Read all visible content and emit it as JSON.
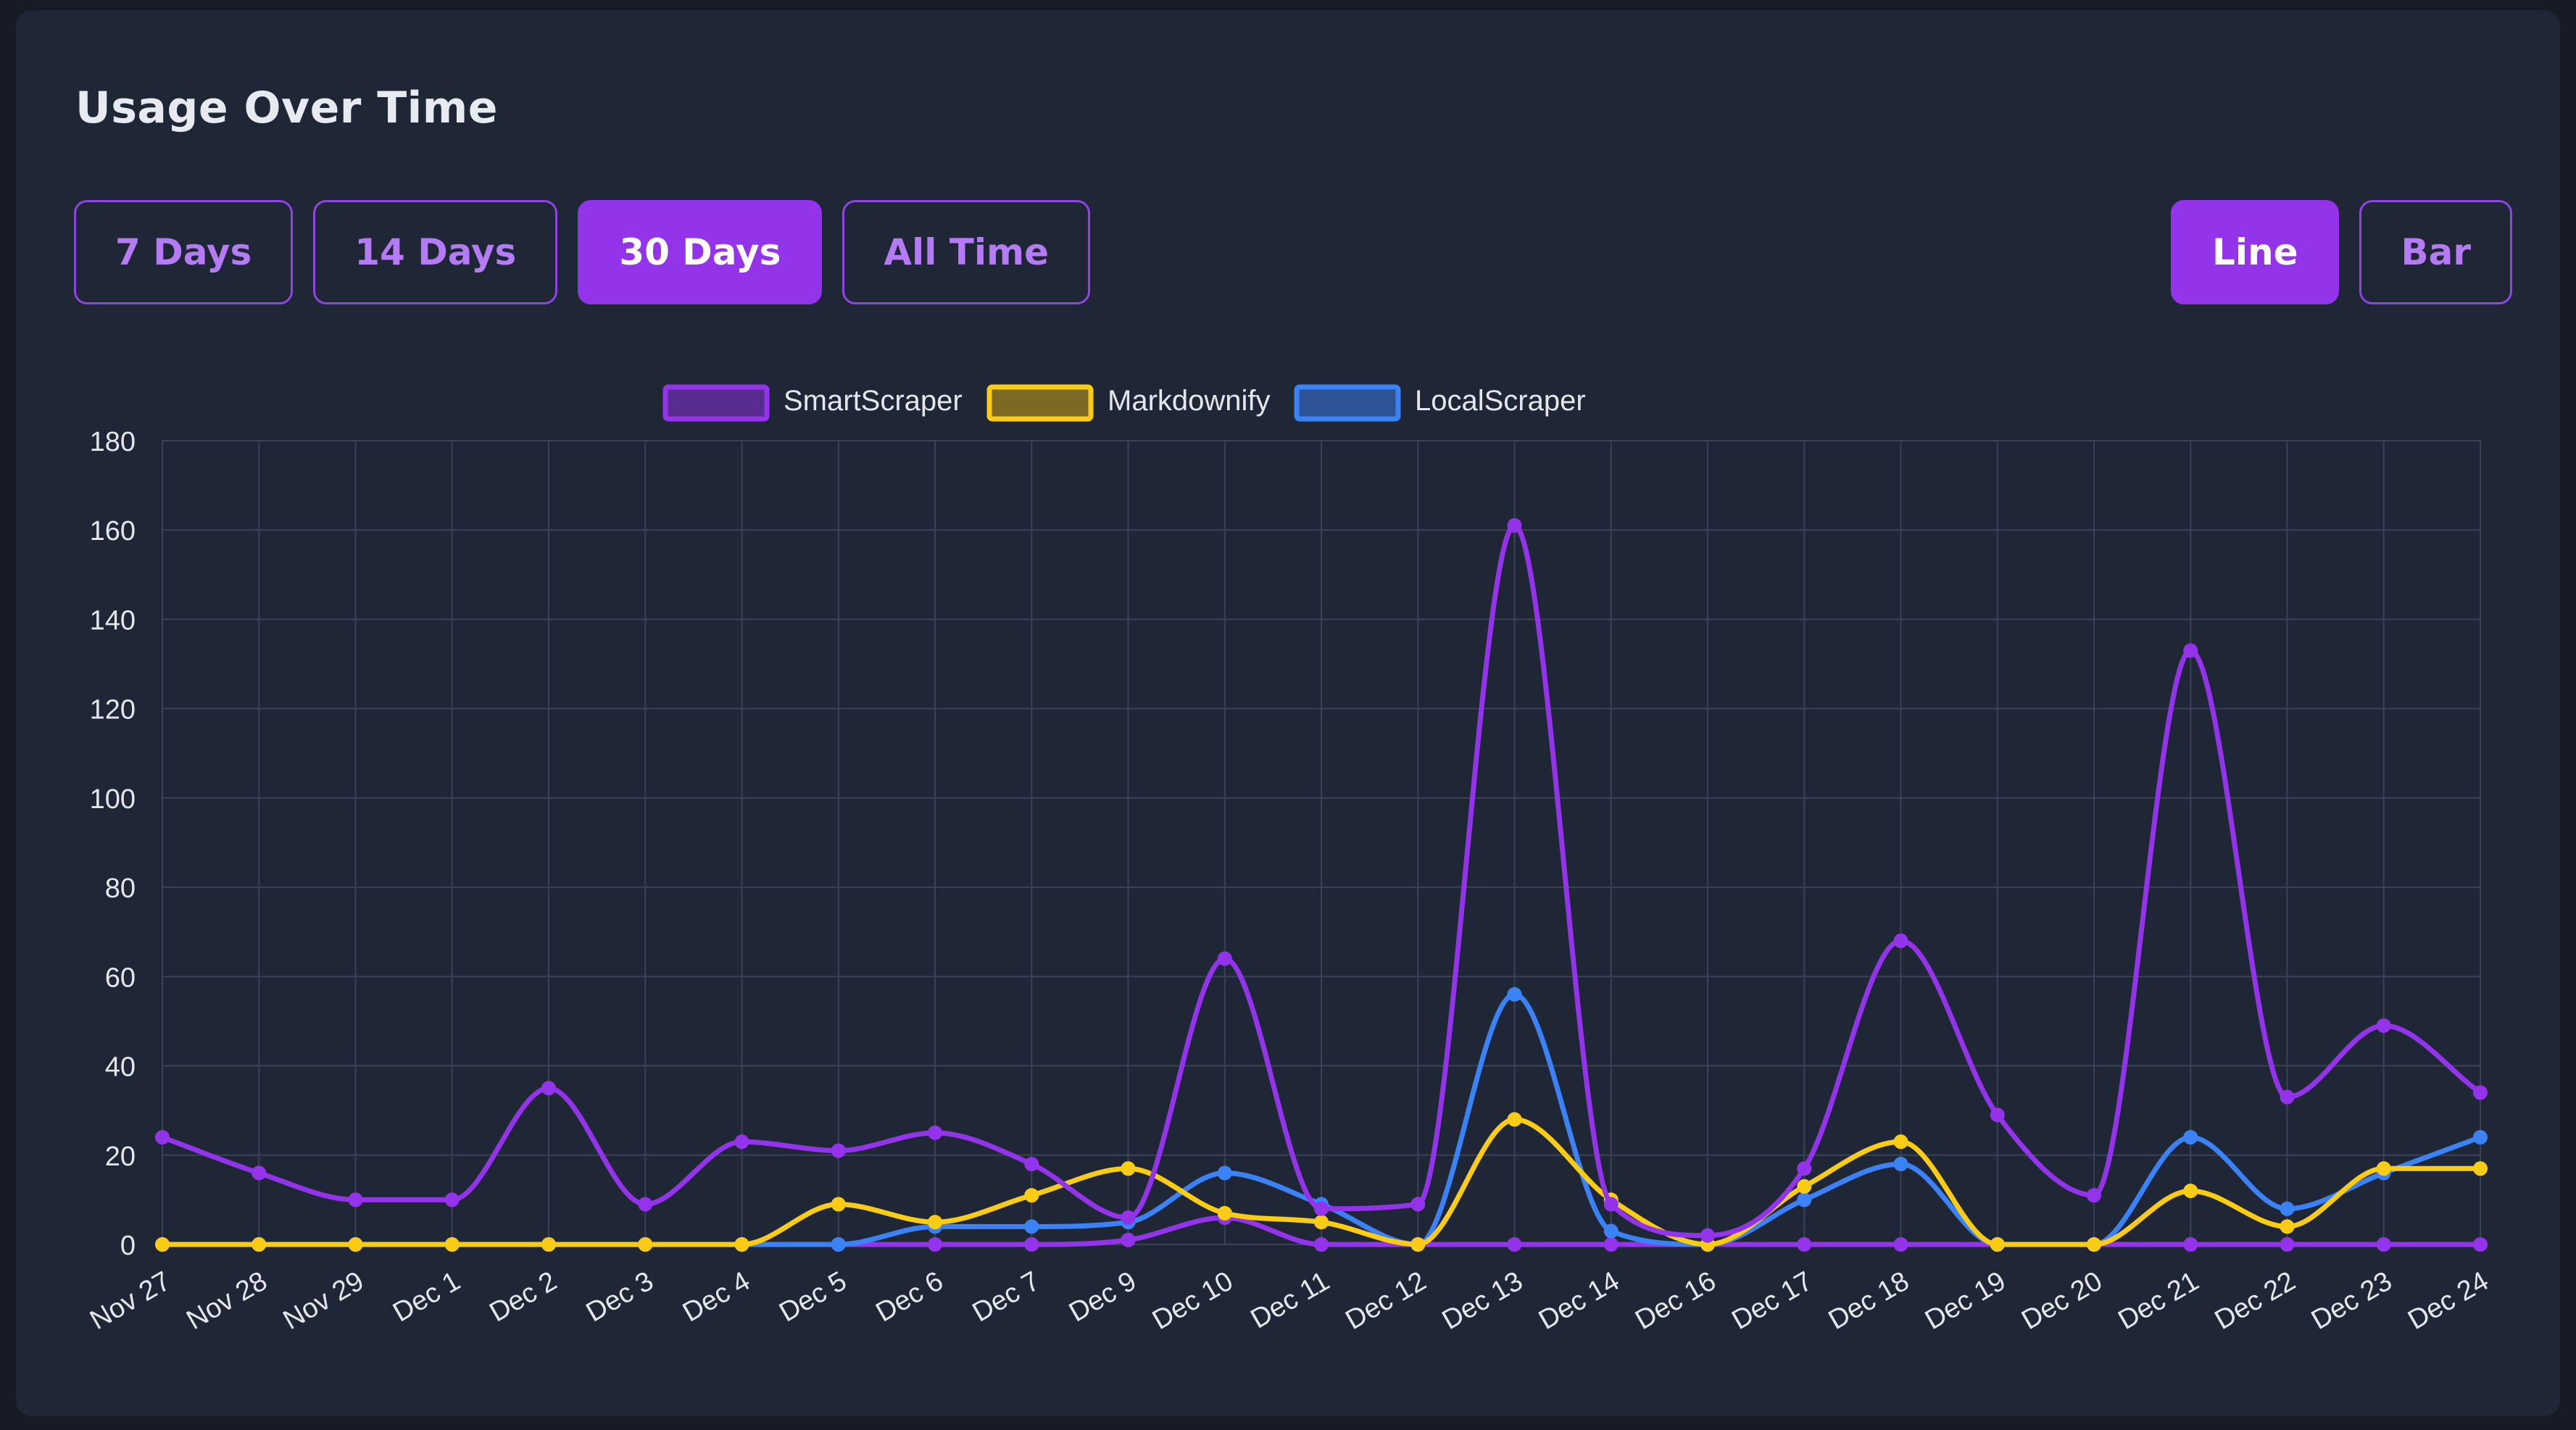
{
  "card": {
    "title": "Usage Over Time"
  },
  "range_buttons": [
    {
      "label": "7 Days",
      "active": false
    },
    {
      "label": "14 Days",
      "active": false
    },
    {
      "label": "30 Days",
      "active": true
    },
    {
      "label": "All Time",
      "active": false
    }
  ],
  "chart_type_buttons": [
    {
      "label": "Line",
      "active": true
    },
    {
      "label": "Bar",
      "active": false
    }
  ],
  "colors": {
    "accent": "#9333ea",
    "card_bg": "#1f2737",
    "grid": "#3a4356",
    "tick_text": "#e5e7eb"
  },
  "chart_data": {
    "type": "line",
    "title": "",
    "xlabel": "",
    "ylabel": "",
    "ylim": [
      0,
      180
    ],
    "y_ticks": [
      0,
      20,
      40,
      60,
      80,
      100,
      120,
      140,
      160,
      180
    ],
    "grid": true,
    "legend_position": "top",
    "categories": [
      "Nov 27",
      "Nov 28",
      "Nov 29",
      "Dec 1",
      "Dec 2",
      "Dec 3",
      "Dec 4",
      "Dec 5",
      "Dec 6",
      "Dec 7",
      "Dec 9",
      "Dec 10",
      "Dec 11",
      "Dec 12",
      "Dec 13",
      "Dec 14",
      "Dec 16",
      "Dec 17",
      "Dec 18",
      "Dec 19",
      "Dec 20",
      "Dec 21",
      "Dec 22",
      "Dec 23",
      "Dec 24"
    ],
    "series": [
      {
        "name": "SmartScraper",
        "color": "#9333ea",
        "fill": "rgba(147,51,234,0.5)",
        "values": [
          24,
          16,
          10,
          10,
          35,
          9,
          23,
          21,
          25,
          18,
          6,
          64,
          8,
          9,
          161,
          9,
          2,
          17,
          68,
          29,
          11,
          133,
          33,
          49,
          34
        ]
      },
      {
        "name": "Markdownify",
        "color": "#facc15",
        "fill": "rgba(202,160,20,0.55)",
        "values": [
          0,
          0,
          0,
          0,
          0,
          0,
          0,
          9,
          5,
          11,
          17,
          7,
          5,
          0,
          28,
          10,
          0,
          13,
          23,
          0,
          0,
          12,
          4,
          17,
          17
        ]
      },
      {
        "name": "LocalScraper",
        "color": "#3b82f6",
        "fill": "rgba(59,130,246,0.5)",
        "values": [
          0,
          0,
          0,
          0,
          0,
          0,
          0,
          0,
          4,
          4,
          5,
          16,
          9,
          0,
          56,
          3,
          0,
          10,
          18,
          0,
          0,
          24,
          8,
          16,
          24
        ]
      },
      {
        "name": "",
        "color": "#9333ea",
        "fill": "rgba(147,51,234,0.5)",
        "values": [
          0,
          0,
          0,
          0,
          0,
          0,
          0,
          0,
          0,
          0,
          1,
          6,
          0,
          0,
          0,
          0,
          0,
          0,
          0,
          0,
          0,
          0,
          0,
          0,
          0
        ]
      }
    ]
  }
}
